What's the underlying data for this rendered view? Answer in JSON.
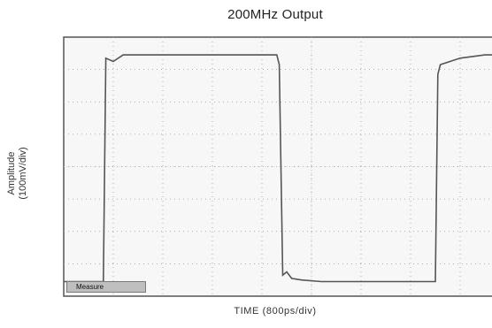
{
  "chart_data": {
    "type": "line",
    "title": "200MHz Output",
    "xlabel": "TIME (800ps/div)",
    "ylabel": [
      "Amplitude",
      "(100mV/div)"
    ],
    "x_divisions": 10,
    "y_divisions": 8,
    "grid": true,
    "waveform": "square wave, ~50% duty, 3 rising edges in view",
    "series": [
      {
        "name": "",
        "x": [
          0,
          0.8,
          0.85,
          1.0,
          1.2,
          1.6,
          2.0,
          2.8,
          3.6,
          4.3,
          4.35,
          4.42,
          4.5,
          4.6,
          4.8,
          5.2,
          6.0,
          6.8,
          7.5,
          7.55,
          7.6,
          8.0,
          8.5,
          9.0,
          10.0
        ],
        "y": [
          0.1,
          0.1,
          7.0,
          6.9,
          7.1,
          7.1,
          7.1,
          7.1,
          7.1,
          7.1,
          6.8,
          0.3,
          0.4,
          0.2,
          0.15,
          0.1,
          0.1,
          0.1,
          0.1,
          6.5,
          6.8,
          7.0,
          7.1,
          7.1,
          7.1
        ]
      }
    ]
  },
  "measure_button": "Measure"
}
